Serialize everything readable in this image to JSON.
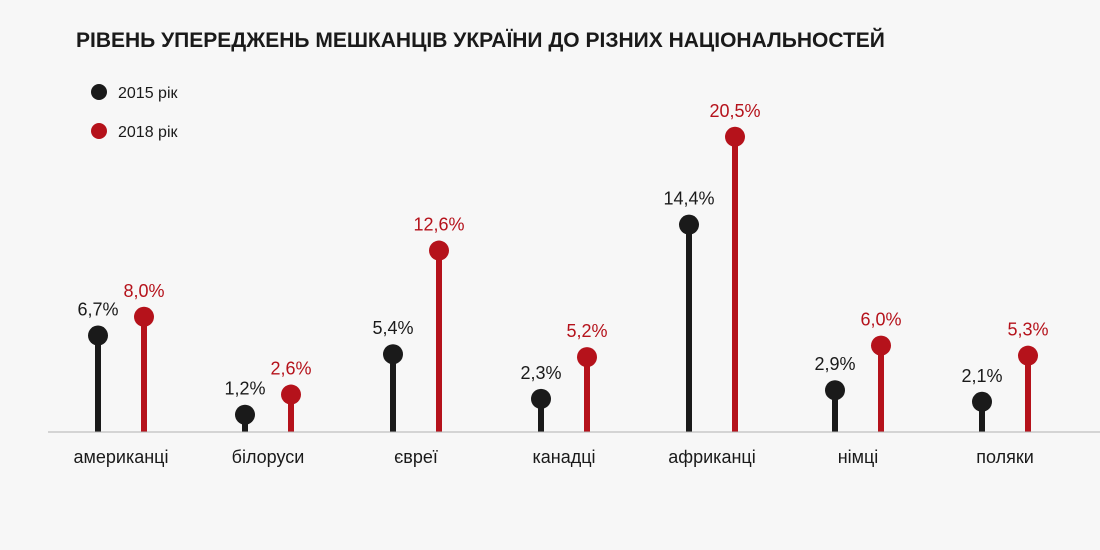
{
  "chart_data": {
    "type": "lollipop",
    "title": "РІВЕНЬ УПЕРЕДЖЕНЬ МЕШКАНЦІВ УКРАЇНИ ДО РІЗНИХ НАЦІОНАЛЬНОСТЕЙ",
    "categories": [
      "американці",
      "білоруси",
      "євреї",
      "канадці",
      "африканці",
      "німці",
      "поляки"
    ],
    "series": [
      {
        "name": "2015 рік",
        "color": "#1a1a1a",
        "values": [
          6.7,
          1.2,
          5.4,
          2.3,
          14.4,
          2.9,
          2.1
        ],
        "labels": [
          "6,7%",
          "1,2%",
          "5,4%",
          "2,3%",
          "14,4%",
          "2,9%",
          "2,1%"
        ]
      },
      {
        "name": "2018 рік",
        "color": "#b5121b",
        "values": [
          8.0,
          2.6,
          12.6,
          5.2,
          20.5,
          6.0,
          5.3
        ],
        "labels": [
          "8,0%",
          "2,6%",
          "12,6%",
          "5,2%",
          "20,5%",
          "6,0%",
          "5,3%"
        ]
      }
    ],
    "ylim": [
      0,
      21
    ],
    "legend_position": "top-left",
    "grid": false
  }
}
